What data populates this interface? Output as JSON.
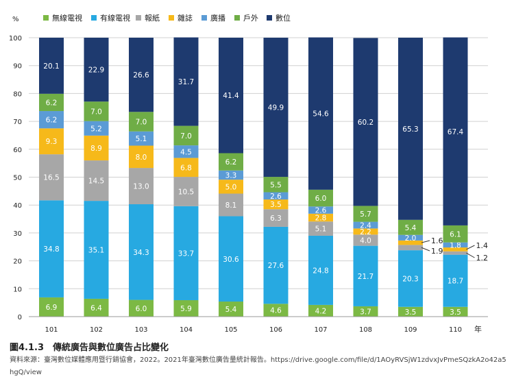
{
  "chart_data": {
    "type": "bar",
    "stacked": true,
    "title": "",
    "xlabel": "年",
    "ylabel": "%",
    "ylim": [
      0,
      100
    ],
    "yticks": [
      0,
      10,
      20,
      30,
      40,
      50,
      60,
      70,
      80,
      90,
      100
    ],
    "grid": true,
    "legend_position": "top",
    "categories": [
      "101",
      "102",
      "103",
      "104",
      "105",
      "106",
      "107",
      "108",
      "109",
      "110"
    ],
    "series": [
      {
        "name": "無線電視",
        "color": "#7cb944",
        "values": [
          6.9,
          6.4,
          6.0,
          5.9,
          5.4,
          4.6,
          4.2,
          3.7,
          3.5,
          3.5
        ]
      },
      {
        "name": "有線電視",
        "color": "#27a9e1",
        "values": [
          34.8,
          35.1,
          34.3,
          33.7,
          30.6,
          27.6,
          24.8,
          21.7,
          20.3,
          18.7
        ]
      },
      {
        "name": "報紙",
        "color": "#a7a7a7",
        "values": [
          16.5,
          14.5,
          13.0,
          10.5,
          8.1,
          6.3,
          5.1,
          4.0,
          1.9,
          1.2
        ]
      },
      {
        "name": "雜誌",
        "color": "#f6b91a",
        "values": [
          9.3,
          8.9,
          8.0,
          6.8,
          5.0,
          3.5,
          2.8,
          2.2,
          1.6,
          1.4
        ]
      },
      {
        "name": "廣播",
        "color": "#5b9bd5",
        "values": [
          6.2,
          5.2,
          5.1,
          4.5,
          3.3,
          2.6,
          2.6,
          2.4,
          2.0,
          1.8
        ]
      },
      {
        "name": "戶外",
        "color": "#6fad46",
        "values": [
          6.2,
          7.0,
          7.0,
          7.0,
          6.2,
          5.5,
          6.0,
          5.7,
          5.4,
          6.1
        ]
      },
      {
        "name": "數位",
        "color": "#1e3a6f",
        "values": [
          20.1,
          22.9,
          26.6,
          31.7,
          41.4,
          49.9,
          54.6,
          60.2,
          65.3,
          67.4
        ]
      }
    ]
  },
  "caption": {
    "figure": "圖4.1.3　傳統廣告與數位廣告占比變化",
    "source": "資料來源：臺灣數位媒體應用暨行銷協會，2022。2021年臺灣數位廣告量統計報告。https://drive.google.com/file/d/1AOyRVSjW1zdvxJvPmeSQzkA2o42a5hgQ/view"
  }
}
